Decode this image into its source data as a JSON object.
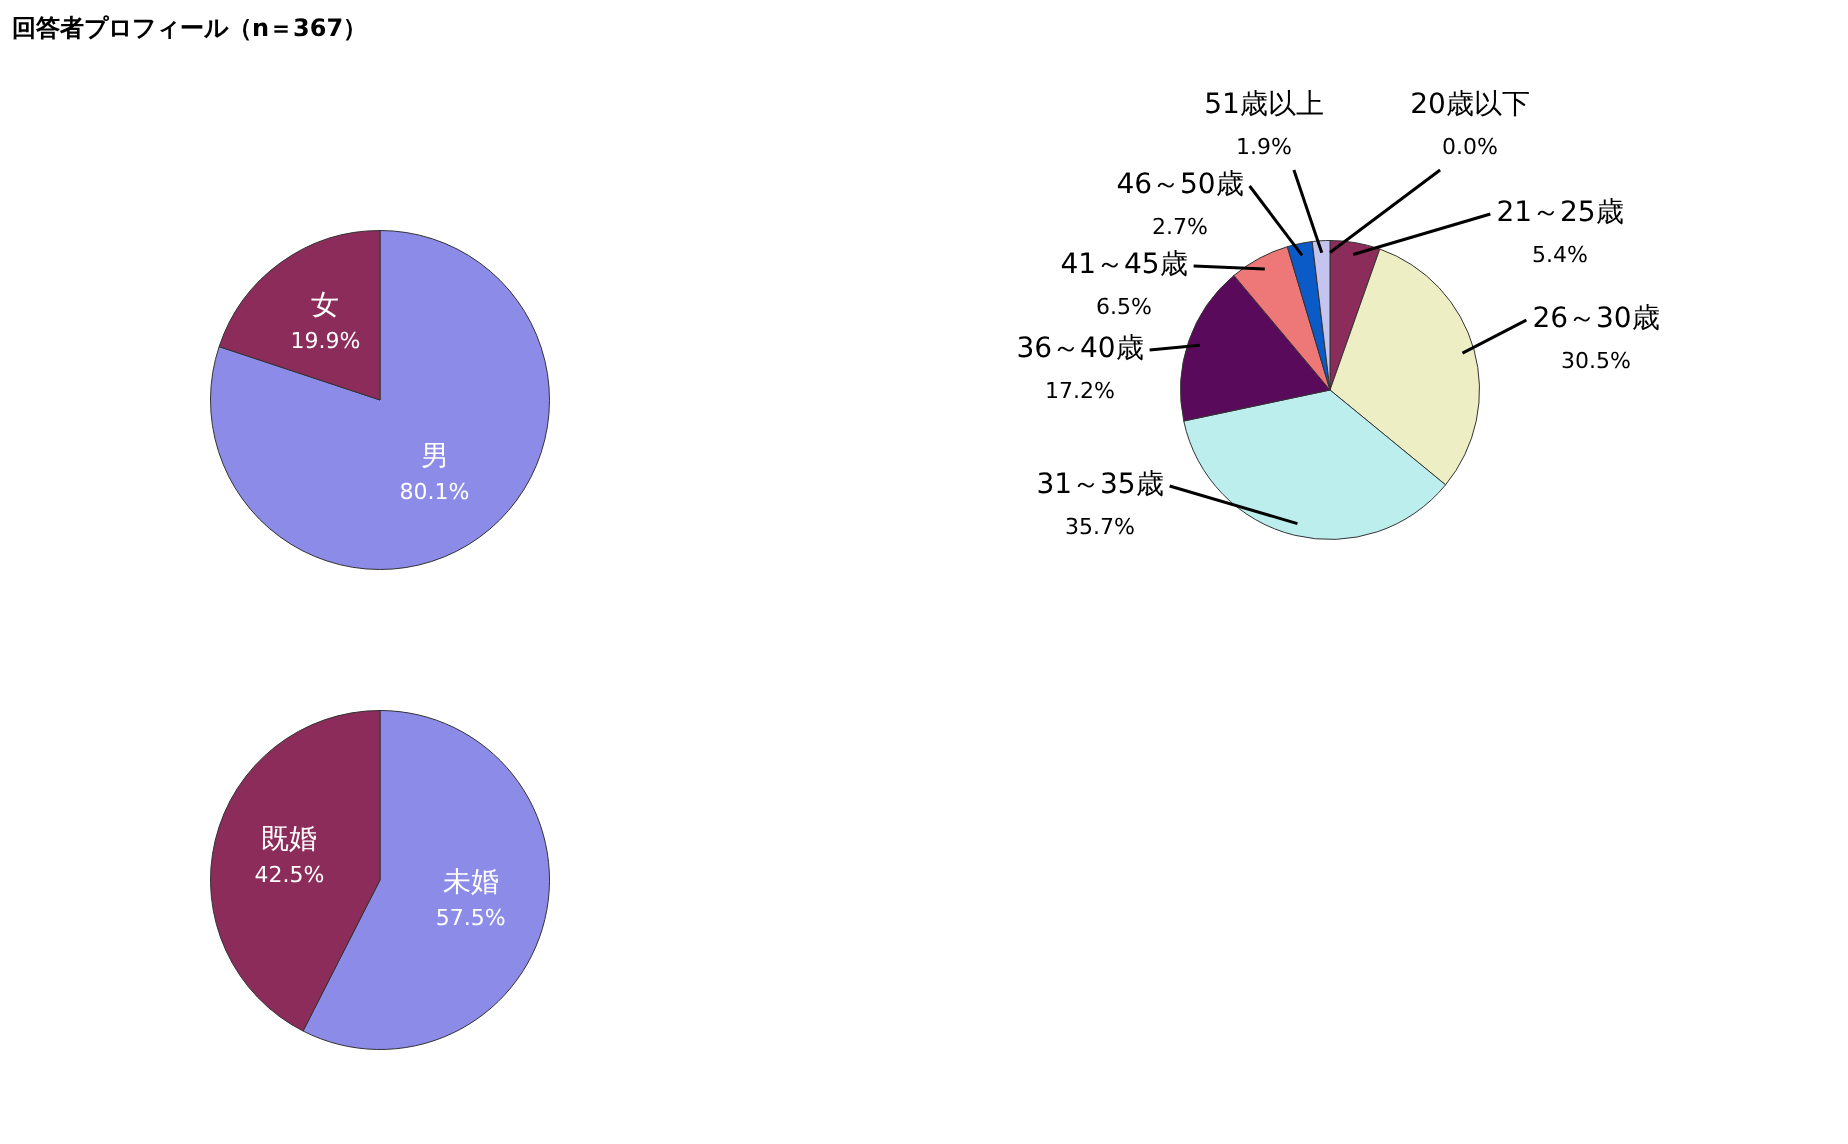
{
  "chart_data": [
    {
      "type": "pie",
      "title": "回答者プロフィール（n＝367）",
      "categories": [
        "男",
        "女"
      ],
      "values": [
        80.1,
        19.9
      ],
      "colors": [
        "#8c8ce8",
        "#8b2c5a"
      ],
      "value_labels": [
        "80.1%",
        "19.9%"
      ]
    },
    {
      "type": "pie",
      "categories": [
        "20歳以下",
        "21～25歳",
        "26～30歳",
        "31～35歳",
        "36～40歳",
        "41～45歳",
        "46～50歳",
        "51歳以上"
      ],
      "values": [
        0.0,
        5.4,
        30.5,
        35.7,
        17.2,
        6.5,
        2.7,
        1.9
      ],
      "colors": [
        "#9999ff",
        "#8b2c5a",
        "#eeeec4",
        "#bdeeee",
        "#5a0a5a",
        "#ee7777",
        "#0a5ac8",
        "#c4c4ee"
      ],
      "value_labels": [
        "0.0%",
        "5.4%",
        "30.5%",
        "35.7%",
        "17.2%",
        "6.5%",
        "2.7%",
        "1.9%"
      ]
    },
    {
      "type": "pie",
      "categories": [
        "未婚",
        "既婚"
      ],
      "values": [
        57.5,
        42.5
      ],
      "colors": [
        "#8c8ce8",
        "#8b2c5a"
      ],
      "value_labels": [
        "57.5%",
        "42.5%"
      ]
    }
  ]
}
